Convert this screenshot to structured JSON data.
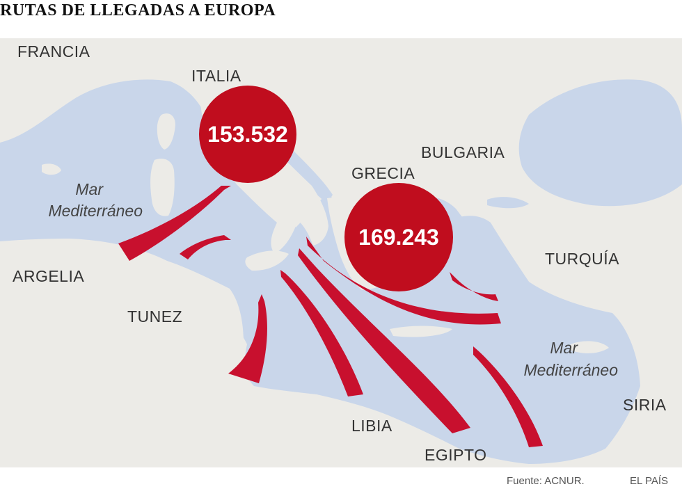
{
  "title": "RUTAS DE LLEGADAS A EUROPA",
  "countries": {
    "francia": "FRANCIA",
    "italia": "ITALIA",
    "bulgaria": "BULGARIA",
    "grecia": "GRECIA",
    "turquia": "TURQUÍA",
    "argelia": "ARGELIA",
    "tunez": "TUNEZ",
    "libia": "LIBIA",
    "egipto": "EGIPTO",
    "siria": "SIRIA"
  },
  "seas": {
    "west_line1": "Mar",
    "west_line2": "Mediterráneo",
    "east_line1": "Mar",
    "east_line2": "Mediterráneo"
  },
  "arrivals": {
    "italia": "153.532",
    "grecia": "169.243"
  },
  "colors": {
    "sea": "#c9d6ea",
    "land": "#ecebe7",
    "arrow": "#c8102e",
    "bubble": "#c00d1e"
  },
  "footer": {
    "source": "Fuente: ACNUR.",
    "brand": "EL PAÍS"
  }
}
